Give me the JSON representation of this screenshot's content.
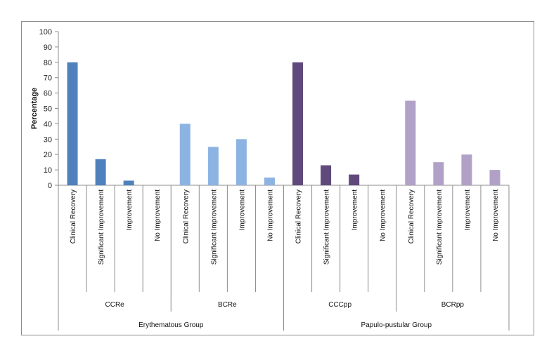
{
  "chart_data": {
    "type": "bar",
    "title": "",
    "ylabel": "Percentage",
    "xlabel": "",
    "ylim": [
      0,
      100
    ],
    "yticks": [
      0,
      10,
      20,
      30,
      40,
      50,
      60,
      70,
      80,
      90,
      100
    ],
    "grid": false,
    "legend": "none",
    "categories": [
      "Clinical Recovery",
      "Significant Improvement",
      "Improvement",
      "No Improvement",
      "Clinical Recovery",
      "Significant Improvement",
      "Improvement",
      "No Improvement",
      "Clinical Recovery",
      "Significant Improvement",
      "Improvement",
      "No Improvement",
      "Clinical Recovery",
      "Significant Improvement",
      "Improvement",
      "No Improvement"
    ],
    "values": [
      80,
      17,
      3,
      0,
      40,
      25,
      30,
      5,
      80,
      13,
      7,
      0,
      55,
      15,
      20,
      10
    ],
    "subgroups": [
      {
        "label": "CCRe",
        "color": "#4f81bd"
      },
      {
        "label": "BCRe",
        "color": "#8db3e2"
      },
      {
        "label": "CCCpp",
        "color": "#604a7b"
      },
      {
        "label": "BCRpp",
        "color": "#b2a1c7"
      }
    ],
    "groups": [
      {
        "label": "Erythematous Group"
      },
      {
        "label": "Papulo-pustular Group"
      }
    ]
  }
}
